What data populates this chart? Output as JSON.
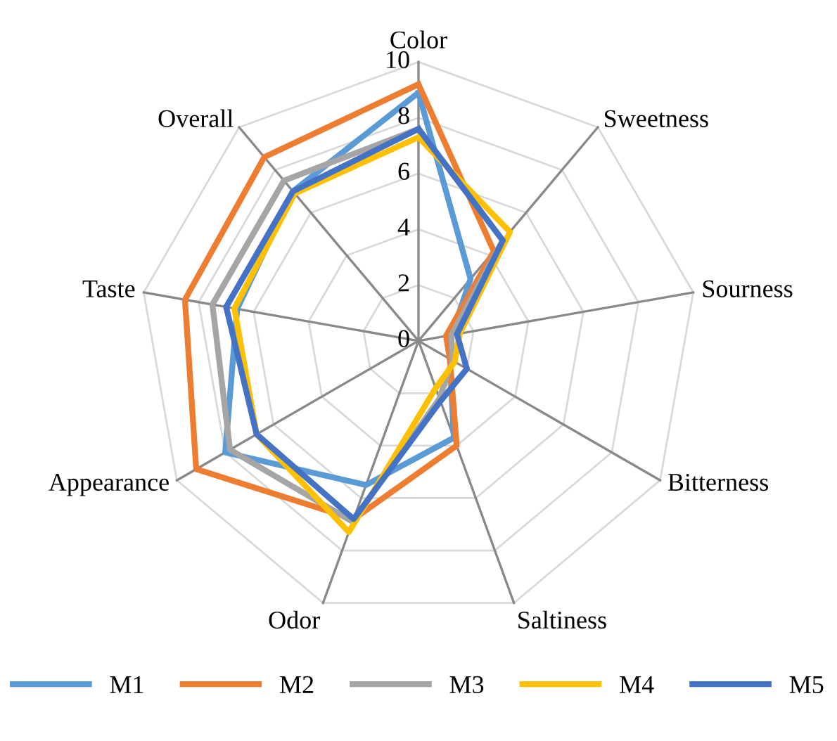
{
  "chart_data": {
    "type": "radar",
    "categories": [
      "Color",
      "Sweetness",
      "Sourness",
      "Bitterness",
      "Saltiness",
      "Odor",
      "Appearance",
      "Taste",
      "Overall"
    ],
    "ylim": [
      0,
      10
    ],
    "yticks": [
      0,
      2,
      4,
      6,
      8,
      10
    ],
    "grid": true,
    "legend": "bottom",
    "marker": "none",
    "line_style": "solid",
    "series": [
      {
        "name": "M1",
        "color": "#5b9bd5",
        "values": [
          8.9,
          2.9,
          1.2,
          1.3,
          3.7,
          5.5,
          8.0,
          6.6,
          7.0
        ]
      },
      {
        "name": "M2",
        "color": "#ed7d31",
        "values": [
          9.2,
          4.2,
          1.0,
          1.3,
          4.0,
          6.8,
          9.2,
          8.5,
          8.6
        ]
      },
      {
        "name": "M3",
        "color": "#a5a5a5",
        "values": [
          7.6,
          4.7,
          1.2,
          1.4,
          2.2,
          6.9,
          7.8,
          7.5,
          7.5
        ]
      },
      {
        "name": "M4",
        "color": "#ffc000",
        "values": [
          7.3,
          5.1,
          1.5,
          1.5,
          1.8,
          7.3,
          6.7,
          6.7,
          6.9
        ]
      },
      {
        "name": "M5",
        "color": "#4472c4",
        "values": [
          7.6,
          4.7,
          1.4,
          2.0,
          2.3,
          6.8,
          6.7,
          7.0,
          7.0
        ]
      }
    ]
  }
}
